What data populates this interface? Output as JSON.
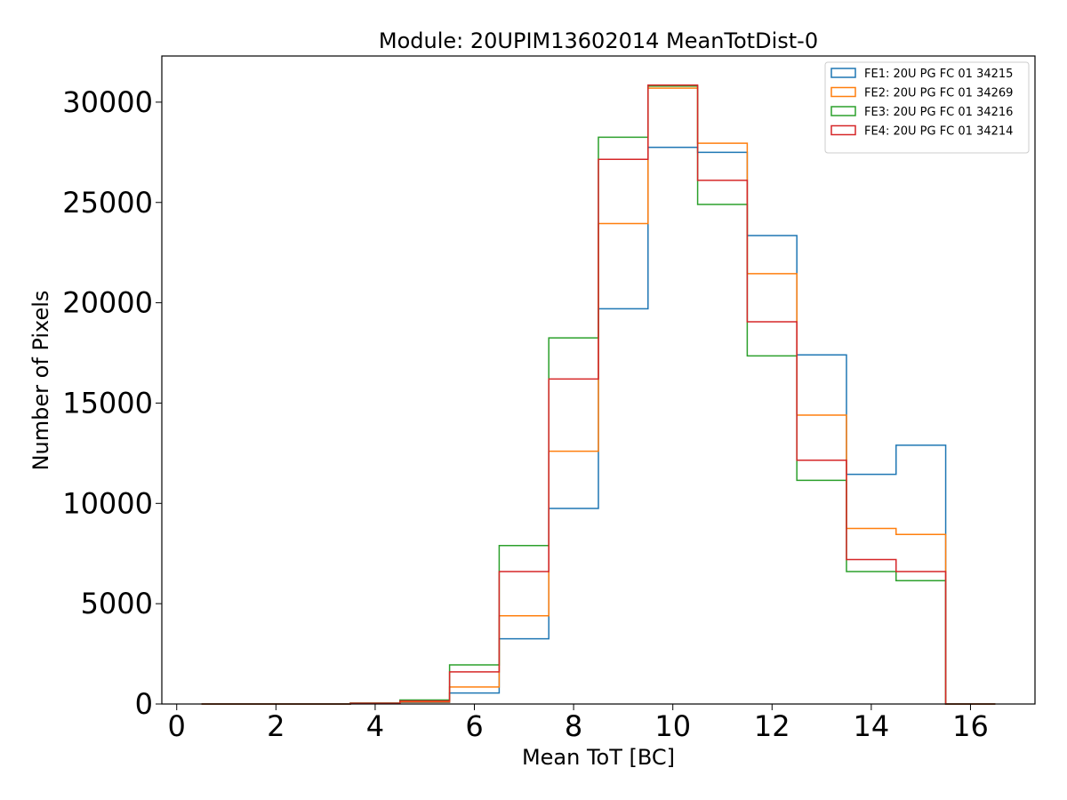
{
  "chart_data": {
    "type": "histogram-step",
    "title": "Module: 20UPIM13602014 MeanTotDist-0",
    "xlabel": "Mean ToT [BC]",
    "ylabel": "Number of Pixels",
    "xlim": [
      -0.3,
      17.3
    ],
    "ylim": [
      0,
      32300
    ],
    "xticks": [
      0,
      2,
      4,
      6,
      8,
      10,
      12,
      14,
      16
    ],
    "yticks": [
      0,
      5000,
      10000,
      15000,
      20000,
      25000,
      30000
    ],
    "bin_edges": [
      0.5,
      1.5,
      2.5,
      3.5,
      4.5,
      5.5,
      6.5,
      7.5,
      8.5,
      9.5,
      10.5,
      11.5,
      12.5,
      13.5,
      14.5,
      15.5,
      16.5
    ],
    "grid": false,
    "legend_position": "top-right",
    "series": [
      {
        "name": "FE1: 20U PG FC 01 34215",
        "color": "#1f77b4",
        "values": [
          0,
          0,
          0,
          20,
          80,
          550,
          3250,
          9750,
          19700,
          27750,
          27500,
          23350,
          17400,
          11450,
          12900,
          0
        ]
      },
      {
        "name": "FE2: 20U PG FC 01 34269",
        "color": "#ff7f0e",
        "values": [
          0,
          0,
          0,
          30,
          100,
          850,
          4400,
          12600,
          23950,
          30700,
          27950,
          21450,
          14400,
          8750,
          8450,
          0
        ]
      },
      {
        "name": "FE3: 20U PG FC 01 34216",
        "color": "#2ca02c",
        "values": [
          0,
          0,
          0,
          50,
          200,
          1950,
          7900,
          18250,
          28250,
          30800,
          24900,
          17350,
          11150,
          6600,
          6150,
          0
        ]
      },
      {
        "name": "FE4: 20U PG FC 01 34214",
        "color": "#d62728",
        "values": [
          0,
          0,
          0,
          40,
          150,
          1600,
          6600,
          16200,
          27150,
          30850,
          26100,
          19050,
          12150,
          7200,
          6600,
          0
        ]
      }
    ]
  }
}
